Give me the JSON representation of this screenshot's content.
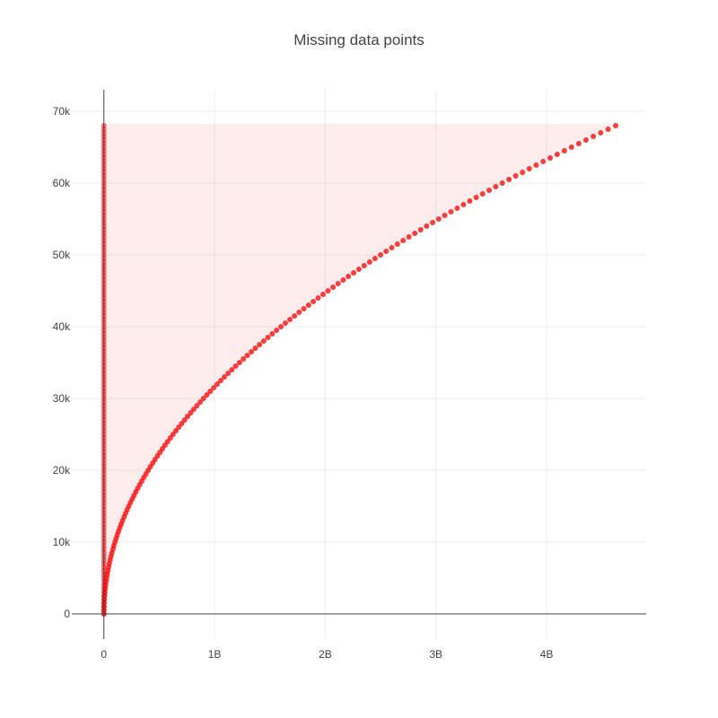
{
  "chart_data": {
    "type": "scatter",
    "title": "Missing data points",
    "xlabel": "",
    "ylabel": "",
    "xlim": [
      -290000000,
      4900000000
    ],
    "ylim": [
      -3500,
      73000
    ],
    "x_ticks": [
      {
        "value": 0,
        "label": "0"
      },
      {
        "value": 1000000000,
        "label": "1B"
      },
      {
        "value": 2000000000,
        "label": "2B"
      },
      {
        "value": 3000000000,
        "label": "3B"
      },
      {
        "value": 4000000000,
        "label": "4B"
      }
    ],
    "y_ticks": [
      {
        "value": 0,
        "label": "0"
      },
      {
        "value": 10000,
        "label": "10k"
      },
      {
        "value": 20000,
        "label": "20k"
      },
      {
        "value": 30000,
        "label": "30k"
      },
      {
        "value": 40000,
        "label": "40k"
      },
      {
        "value": 50000,
        "label": "50k"
      },
      {
        "value": 60000,
        "label": "60k"
      },
      {
        "value": 70000,
        "label": "70k"
      }
    ],
    "grid": true,
    "legend": false,
    "marker_color": "#ff0000",
    "series": [
      {
        "description_of_trend": "points at (y^2, y) for y from 0 to 68000; many translucent points along each row from x=0 to the edge",
        "x_end": [
          0,
          4000000,
          16000000,
          36000000,
          64000000,
          100000000,
          144000000,
          196000000,
          256000000,
          324000000,
          400000000,
          484000000,
          576000000,
          676000000,
          784000000,
          900000000,
          1024000000,
          1156000000,
          1296000000,
          1444000000,
          1600000000,
          1764000000,
          1936000000,
          2116000000,
          2304000000,
          2500000000,
          2704000000,
          2916000000,
          3136000000,
          3364000000,
          3600000000,
          3844000000,
          4096000000,
          4356000000,
          4624000000
        ],
        "y": [
          0,
          2000,
          4000,
          6000,
          8000,
          10000,
          12000,
          14000,
          16000,
          18000,
          20000,
          22000,
          24000,
          26000,
          28000,
          30000,
          32000,
          34000,
          36000,
          38000,
          40000,
          42000,
          44000,
          46000,
          48000,
          50000,
          52000,
          54000,
          56000,
          58000,
          60000,
          62000,
          64000,
          66000,
          68000
        ]
      }
    ]
  }
}
